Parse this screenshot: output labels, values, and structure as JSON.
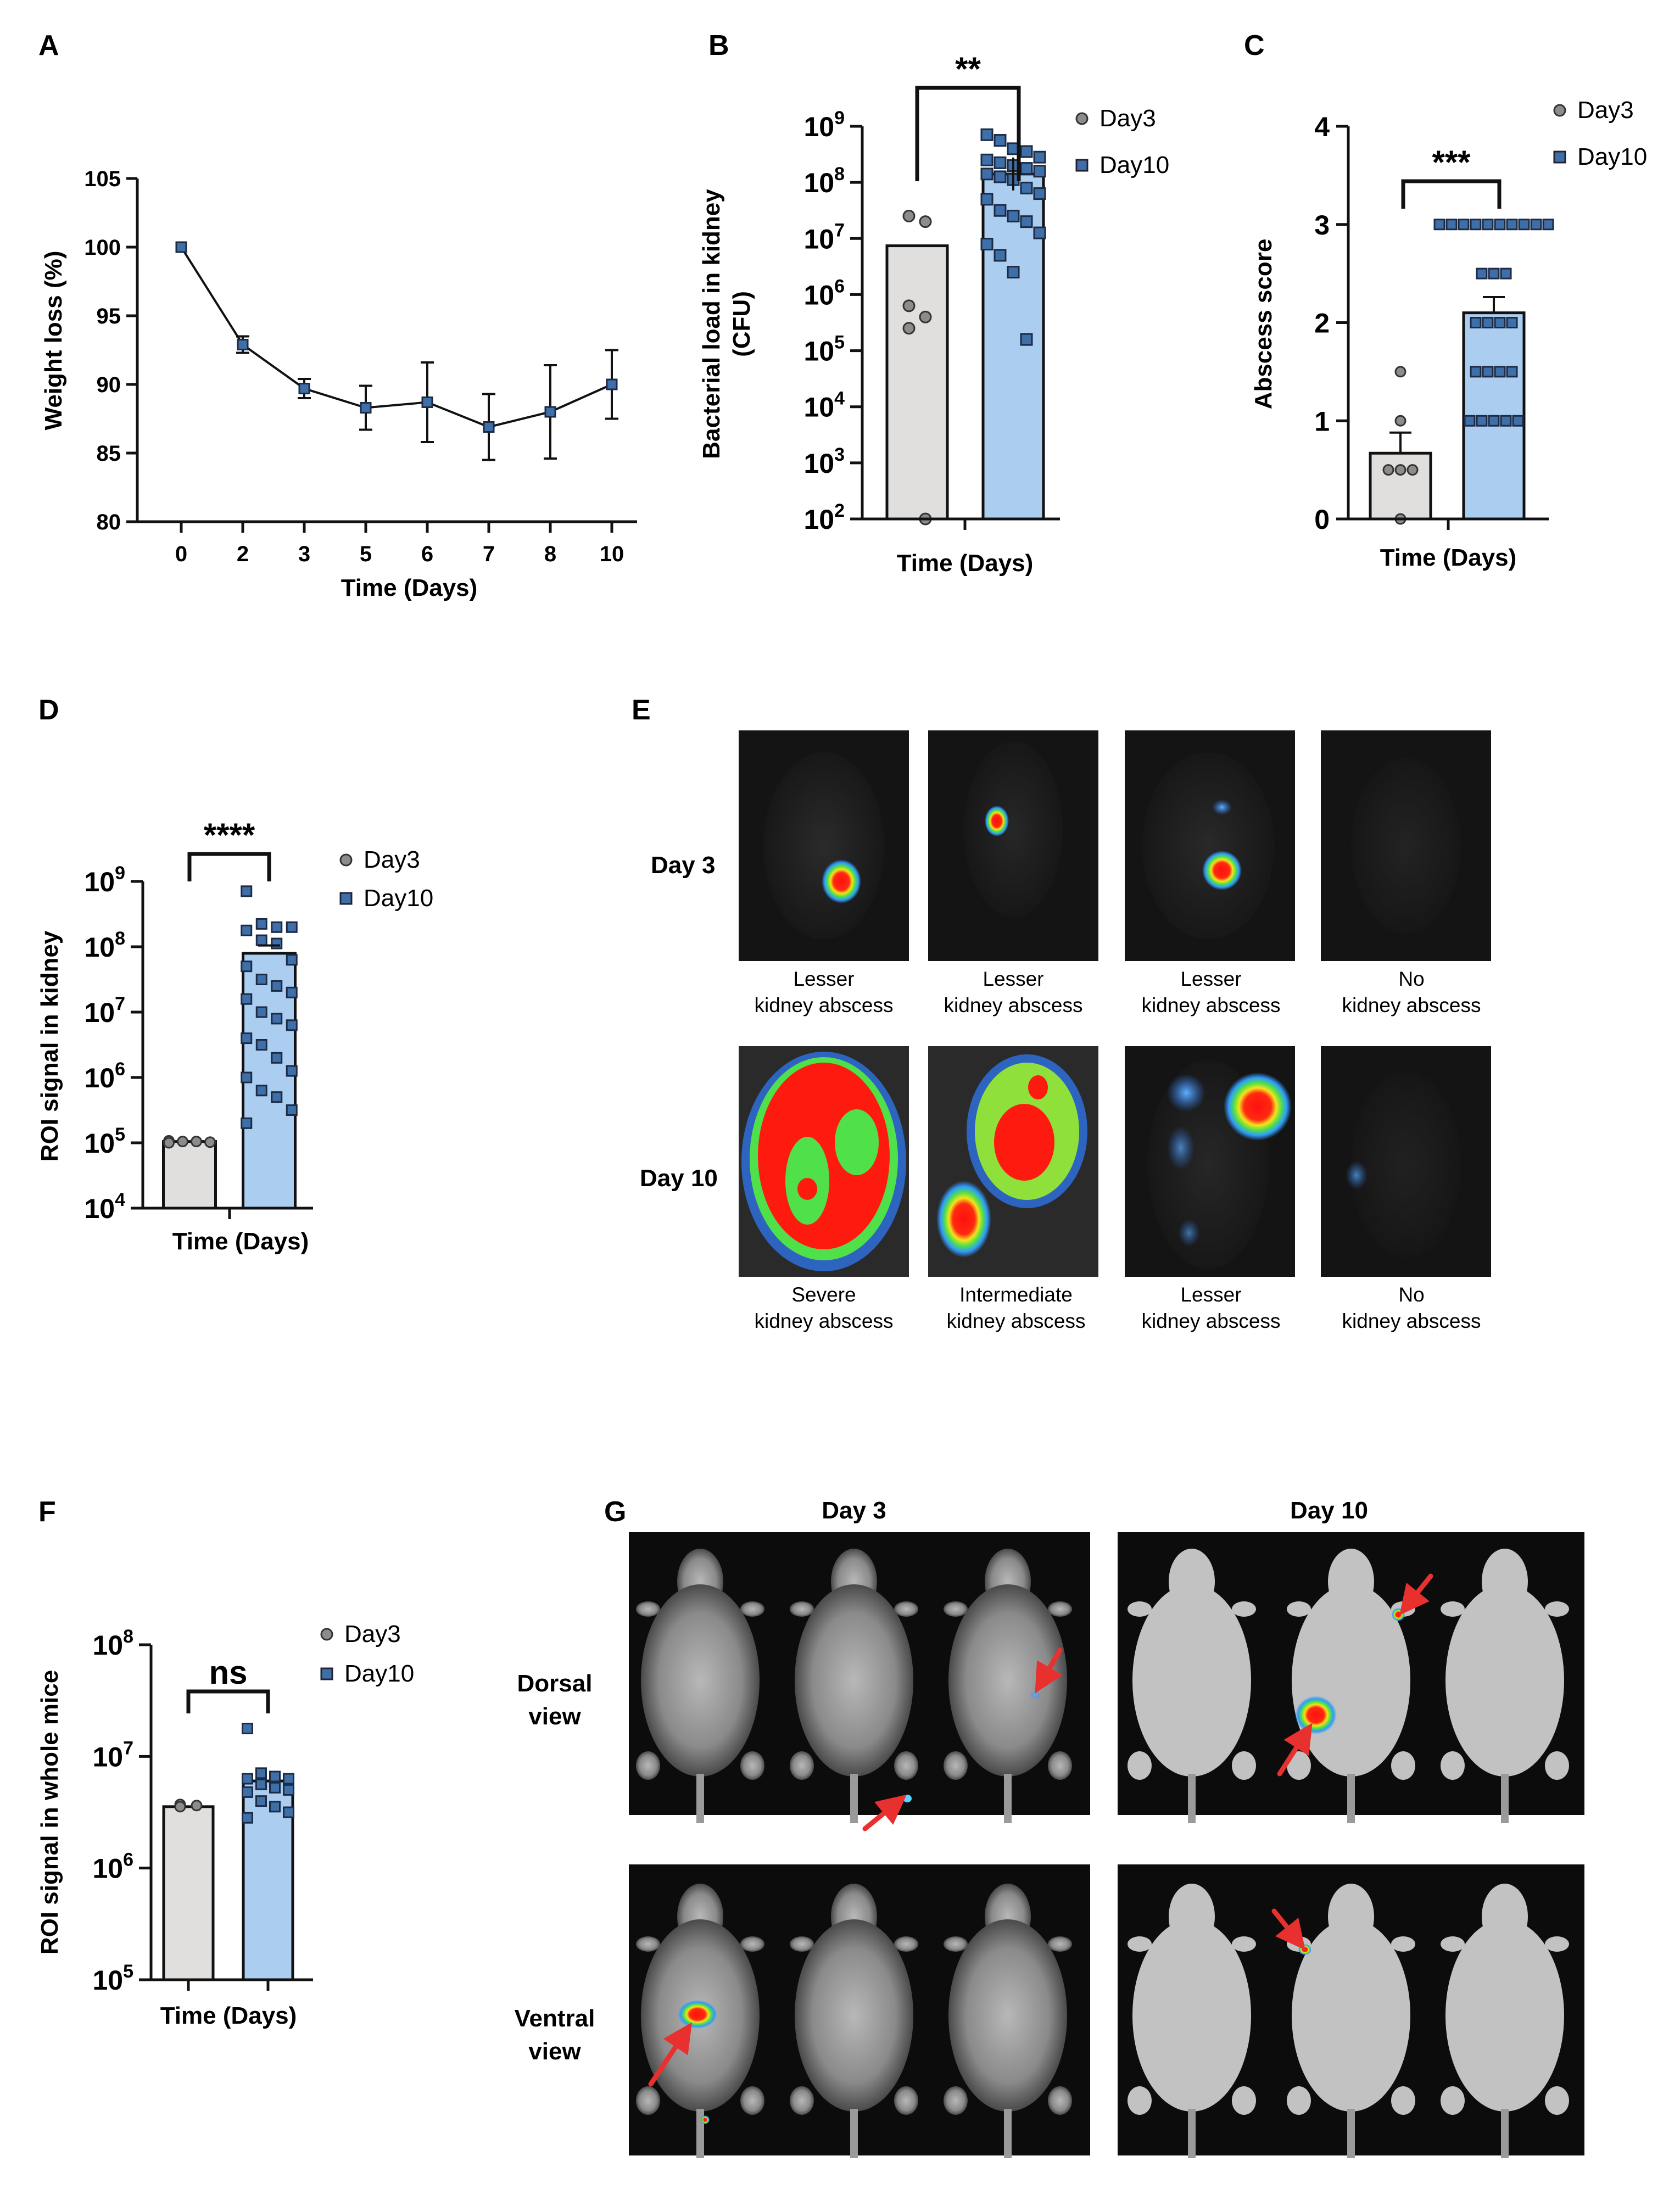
{
  "figure": {
    "panels": [
      "A",
      "B",
      "C",
      "D",
      "E",
      "F",
      "G"
    ]
  },
  "colors": {
    "day3_bar": "#e0dfdd",
    "day10_bar": "#abcdf0",
    "day3_point": "#8c8c8c",
    "day10_point": "#3f6fa8",
    "axis": "#111111",
    "image_bg": "#141414",
    "arrow": "#e8312f"
  },
  "chart_data": [
    {
      "id": "A",
      "type": "line",
      "title": "",
      "xlabel": "Time (Days)",
      "ylabel": "Weight loss (%)",
      "categories": [
        "0",
        "2",
        "3",
        "5",
        "6",
        "7",
        "8",
        "10"
      ],
      "values": [
        100,
        92.9,
        89.7,
        88.3,
        88.7,
        86.9,
        88.0,
        90.0
      ],
      "errors": [
        0,
        0.6,
        0.7,
        1.6,
        2.9,
        2.4,
        3.4,
        2.5
      ],
      "ylim": [
        80,
        105
      ],
      "yticks": [
        "80",
        "85",
        "90",
        "95",
        "100",
        "105"
      ]
    },
    {
      "id": "B",
      "type": "bar",
      "scale": "log10",
      "title": "",
      "xlabel": "Time (Days)",
      "ylabel": "Bacterial load in kidney (CFU)",
      "significance": "**",
      "legend": [
        "Day3",
        "Day10"
      ],
      "ylim_exp": [
        2,
        9
      ],
      "ytick_base": "10",
      "ytick_exps": [
        "2",
        "3",
        "4",
        "5",
        "6",
        "7",
        "8",
        "9"
      ],
      "series": [
        {
          "name": "Day3",
          "bar_log": 6.87,
          "points_log": [
            7.4,
            7.3,
            5.8,
            5.6,
            5.4,
            2.0
          ]
        },
        {
          "name": "Day10",
          "bar_log": 8.15,
          "points_log": [
            8.85,
            8.75,
            8.6,
            8.55,
            8.45,
            8.4,
            8.35,
            8.3,
            8.25,
            8.2,
            8.15,
            8.1,
            8.05,
            7.9,
            7.8,
            7.7,
            7.5,
            7.4,
            7.3,
            7.1,
            6.9,
            6.7,
            6.4,
            5.2
          ]
        }
      ]
    },
    {
      "id": "C",
      "type": "bar",
      "title": "",
      "xlabel": "Time (Days)",
      "ylabel": "Abscess score",
      "significance": "***",
      "legend": [
        "Day3",
        "Day10"
      ],
      "ylim": [
        0,
        4
      ],
      "yticks": [
        "0",
        "1",
        "2",
        "3",
        "4"
      ],
      "series": [
        {
          "name": "Day3",
          "mean": 0.67,
          "sem": 0.21,
          "points": [
            1.5,
            1.0,
            0.5,
            0.5,
            0.5,
            0
          ]
        },
        {
          "name": "Day10",
          "mean": 2.1,
          "sem": 0.16,
          "points": [
            3,
            3,
            3,
            3,
            3,
            3,
            3,
            3,
            3,
            3,
            2.5,
            2.5,
            2.5,
            2,
            2,
            2,
            2,
            1.5,
            1.5,
            1.5,
            1.5,
            1,
            1,
            1,
            1,
            1
          ]
        }
      ]
    },
    {
      "id": "D",
      "type": "bar",
      "scale": "log10",
      "title": "",
      "xlabel": "Time (Days)",
      "ylabel": "ROI signal in kidney",
      "significance": "****",
      "legend": [
        "Day3",
        "Day10"
      ],
      "ylim_exp": [
        4,
        9
      ],
      "ytick_base": "10",
      "ytick_exps": [
        "4",
        "5",
        "6",
        "7",
        "8",
        "9"
      ],
      "series": [
        {
          "name": "Day3",
          "bar_log": 5.02,
          "points_log": [
            5.03,
            5.02,
            5.02,
            5.01,
            5.0
          ]
        },
        {
          "name": "Day10",
          "bar_log": 7.9,
          "points_log": [
            8.85,
            8.35,
            8.3,
            8.3,
            8.25,
            8.1,
            8.05,
            7.8,
            7.7,
            7.5,
            7.4,
            7.3,
            7.2,
            7.0,
            6.9,
            6.8,
            6.6,
            6.5,
            6.3,
            6.1,
            6.0,
            5.8,
            5.7,
            5.5,
            5.3
          ]
        }
      ]
    },
    {
      "id": "F",
      "type": "bar",
      "scale": "log10",
      "title": "",
      "xlabel": "Time (Days)",
      "ylabel": "ROI signal in whole mice",
      "significance": "ns",
      "legend": [
        "Day3",
        "Day10"
      ],
      "ylim_exp": [
        5,
        8
      ],
      "ytick_base": "10",
      "ytick_exps": [
        "5",
        "6",
        "7",
        "8"
      ],
      "series": [
        {
          "name": "Day3",
          "bar_log": 6.55,
          "points_log": [
            6.57,
            6.56,
            6.55
          ]
        },
        {
          "name": "Day10",
          "bar_log": 6.78,
          "points_log": [
            7.25,
            6.85,
            6.82,
            6.8,
            6.8,
            6.75,
            6.72,
            6.7,
            6.68,
            6.6,
            6.55,
            6.5,
            6.45
          ]
        }
      ]
    }
  ],
  "panelE": {
    "rows": [
      {
        "label": "Day 3",
        "captions": [
          [
            "Lesser",
            "kidney abscess"
          ],
          [
            "Lesser",
            "kidney abscess"
          ],
          [
            "Lesser",
            "kidney abscess"
          ],
          [
            "No",
            "kidney abscess"
          ]
        ]
      },
      {
        "label": "Day 10",
        "captions": [
          [
            "Severe",
            "kidney abscess"
          ],
          [
            "Intermediate",
            "kidney abscess"
          ],
          [
            "Lesser",
            "kidney abscess"
          ],
          [
            "No",
            "kidney abscess"
          ]
        ]
      }
    ]
  },
  "panelG": {
    "columns": [
      "Day 3",
      "Day 10"
    ],
    "rows": [
      [
        "Dorsal",
        "view"
      ],
      [
        "Ventral",
        "view"
      ]
    ]
  }
}
